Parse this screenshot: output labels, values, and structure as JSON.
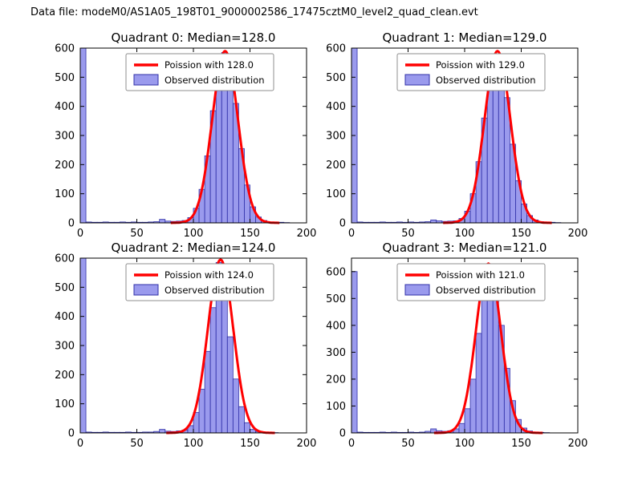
{
  "figure": {
    "title": "Data file: modeM0/AS1A05_198T01_9000002586_17475cztM0_level2_quad_clean.evt"
  },
  "colors": {
    "bar_fill": "#8181e8",
    "bar_edge": "#3030a8",
    "curve": "#ff0000",
    "axes": "#000000",
    "legend_border": "#8f8f8f",
    "background": "#ffffff"
  },
  "chart_data": [
    {
      "type": "bar",
      "subtype": "histogram-with-fit-line",
      "title": "Quadrant 0: Median=128.0",
      "median": 128.0,
      "legend": [
        "Poission with 128.0",
        "Observed distribution"
      ],
      "legend_position": "upper center",
      "xlim": [
        0,
        200
      ],
      "ylim": [
        0,
        600
      ],
      "xticks": [
        0,
        50,
        100,
        150,
        200
      ],
      "yticks": [
        0,
        100,
        200,
        300,
        400,
        500,
        600
      ],
      "bin_start": 0,
      "bin_width": 5,
      "counts": [
        600,
        3,
        2,
        2,
        3,
        2,
        2,
        3,
        2,
        3,
        2,
        2,
        3,
        4,
        12,
        6,
        5,
        6,
        8,
        18,
        50,
        115,
        230,
        385,
        520,
        585,
        540,
        410,
        255,
        130,
        55,
        20,
        8,
        3,
        2,
        2,
        1,
        0,
        0,
        0
      ],
      "curve": {
        "type": "poisson",
        "lambda": 128.0,
        "peak": 590
      }
    },
    {
      "type": "bar",
      "subtype": "histogram-with-fit-line",
      "title": "Quadrant 1: Median=129.0",
      "median": 129.0,
      "legend": [
        "Poission with 129.0",
        "Observed distribution"
      ],
      "legend_position": "upper center",
      "xlim": [
        0,
        200
      ],
      "ylim": [
        0,
        600
      ],
      "xticks": [
        0,
        50,
        100,
        150,
        200
      ],
      "yticks": [
        0,
        100,
        200,
        300,
        400,
        500,
        600
      ],
      "bin_start": 0,
      "bin_width": 5,
      "counts": [
        600,
        3,
        2,
        2,
        2,
        3,
        2,
        2,
        3,
        2,
        3,
        2,
        3,
        4,
        10,
        7,
        5,
        6,
        7,
        15,
        40,
        100,
        210,
        360,
        500,
        580,
        555,
        430,
        270,
        145,
        65,
        25,
        10,
        4,
        2,
        2,
        1,
        0,
        0,
        0
      ],
      "curve": {
        "type": "poisson",
        "lambda": 129.0,
        "peak": 590
      }
    },
    {
      "type": "bar",
      "subtype": "histogram-with-fit-line",
      "title": "Quadrant 2: Median=124.0",
      "median": 124.0,
      "legend": [
        "Poission with 124.0",
        "Observed distribution"
      ],
      "legend_position": "upper center",
      "xlim": [
        0,
        200
      ],
      "ylim": [
        0,
        600
      ],
      "xticks": [
        0,
        50,
        100,
        150,
        200
      ],
      "yticks": [
        0,
        100,
        200,
        300,
        400,
        500,
        600
      ],
      "bin_start": 0,
      "bin_width": 5,
      "counts": [
        600,
        3,
        2,
        2,
        3,
        2,
        2,
        2,
        3,
        2,
        2,
        3,
        3,
        5,
        12,
        6,
        5,
        7,
        10,
        25,
        70,
        150,
        280,
        430,
        585,
        520,
        330,
        185,
        90,
        35,
        12,
        5,
        2,
        2,
        1,
        0,
        0,
        0,
        0,
        0
      ],
      "curve": {
        "type": "poisson",
        "lambda": 124.0,
        "peak": 595
      }
    },
    {
      "type": "bar",
      "subtype": "histogram-with-fit-line",
      "title": "Quadrant 3: Median=121.0",
      "median": 121.0,
      "legend": [
        "Poission with 121.0",
        "Observed distribution"
      ],
      "legend_position": "upper center",
      "xlim": [
        0,
        200
      ],
      "ylim": [
        0,
        650
      ],
      "xticks": [
        0,
        50,
        100,
        150,
        200
      ],
      "yticks": [
        0,
        100,
        200,
        300,
        400,
        500,
        600
      ],
      "bin_start": 0,
      "bin_width": 5,
      "counts": [
        600,
        3,
        2,
        2,
        2,
        3,
        2,
        3,
        2,
        2,
        3,
        2,
        3,
        6,
        15,
        8,
        6,
        8,
        15,
        35,
        90,
        200,
        370,
        530,
        620,
        560,
        400,
        240,
        120,
        50,
        18,
        7,
        3,
        2,
        1,
        0,
        0,
        0,
        0,
        0
      ],
      "curve": {
        "type": "poisson",
        "lambda": 121.0,
        "peak": 630
      }
    }
  ]
}
